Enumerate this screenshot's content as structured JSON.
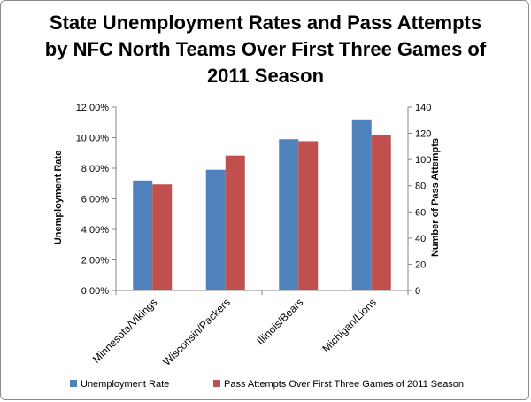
{
  "chart_data": {
    "type": "bar",
    "title": "State Unemployment Rates and Pass Attempts by NFC North Teams Over First Three Games of 2011 Season",
    "categories": [
      "Minnesota/Vikings",
      "Wisconsin/Packers",
      "Illinois/Bears",
      "Michigan/Lions"
    ],
    "series": [
      {
        "name": "Unemployment Rate",
        "axis": "left",
        "color": "#4f81bd",
        "values": [
          0.072,
          0.079,
          0.099,
          0.112
        ]
      },
      {
        "name": "Pass Attempts Over First Three Games of 2011 Season",
        "axis": "right",
        "color": "#c0504d",
        "values": [
          81,
          103,
          114,
          119
        ]
      }
    ],
    "ylabel": "Unemployment Rate",
    "y2label": "Number of Pass Attempts",
    "xlabel": "",
    "ylim": [
      0,
      0.12
    ],
    "y2lim": [
      0,
      140
    ],
    "yticks": [
      "0.00%",
      "2.00%",
      "4.00%",
      "6.00%",
      "8.00%",
      "10.00%",
      "12.00%"
    ],
    "y2ticks": [
      "0",
      "20",
      "40",
      "60",
      "80",
      "100",
      "120",
      "140"
    ],
    "grid": false,
    "legend": "bottom"
  }
}
